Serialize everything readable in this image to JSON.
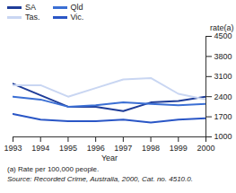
{
  "chart_data": {
    "type": "line",
    "x": [
      1993,
      1994,
      1995,
      1996,
      1997,
      1998,
      1999,
      2000
    ],
    "x_label": "Year",
    "y_label": "rate(a)",
    "xlim": [
      1993,
      2000
    ],
    "xticks": [
      1993,
      1994,
      1995,
      1996,
      1997,
      1998,
      1999,
      2000
    ],
    "ylim": [
      1000,
      4500
    ],
    "yticks": [
      1000,
      1700,
      2400,
      3100,
      3800,
      4500
    ],
    "grid": false,
    "legend": "top-left",
    "series": [
      {
        "name": "SA",
        "color": "#1f3d99",
        "values": [
          2850,
          2450,
          2050,
          2050,
          1900,
          2200,
          2250,
          2400
        ]
      },
      {
        "name": "Qld",
        "color": "#3b6fd4",
        "values": [
          2400,
          2300,
          2050,
          2100,
          2200,
          2150,
          2100,
          2150
        ]
      },
      {
        "name": "Tas.",
        "color": "#c9d6f2",
        "values": [
          2800,
          2800,
          2400,
          2700,
          3000,
          3050,
          2500,
          2300
        ]
      },
      {
        "name": "Vic.",
        "color": "#2a56c6",
        "values": [
          1800,
          1600,
          1550,
          1550,
          1600,
          1500,
          1600,
          1650
        ]
      }
    ],
    "footnote": "(a) Rate per 100,000 people.",
    "source": "Source: Recorded Crime, Australia, 2000, Cat. no. 4510.0."
  }
}
